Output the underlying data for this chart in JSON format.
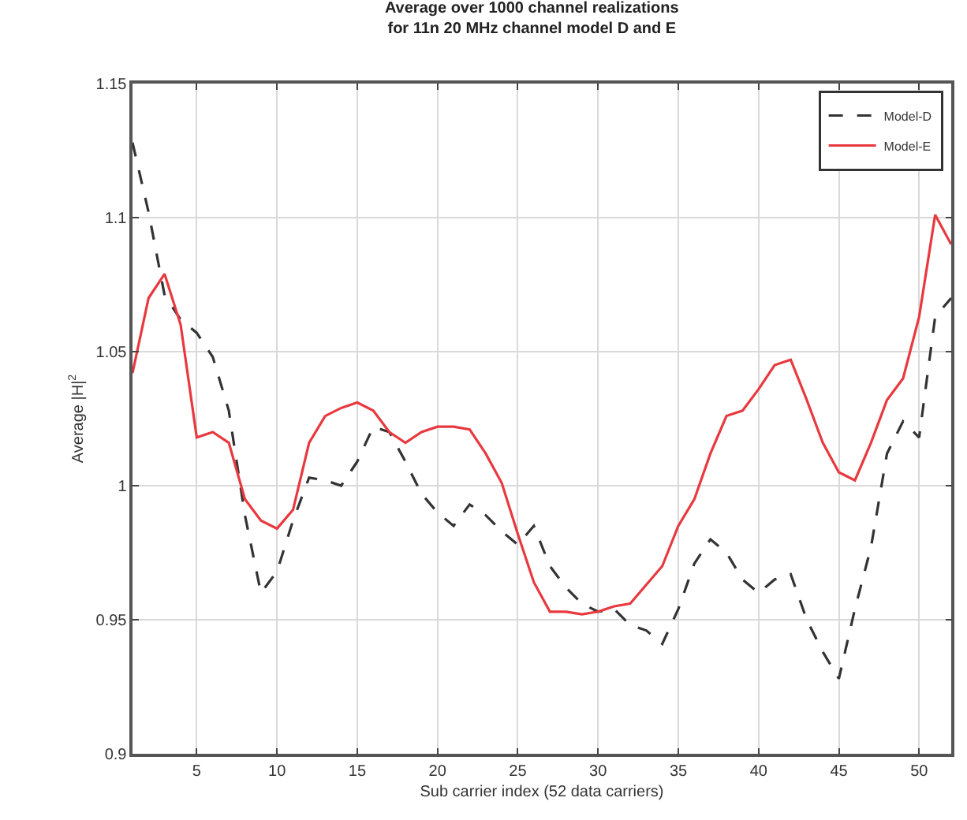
{
  "chart_data": {
    "type": "line",
    "title": "Average over 1000 channel realizations\nfor 11n 20 MHz channel model D and E",
    "xlabel": "Sub carrier index (52 data carriers)",
    "ylabel": "Average |H|$^{2}$",
    "x": [
      1,
      2,
      3,
      4,
      5,
      6,
      7,
      8,
      9,
      10,
      11,
      12,
      13,
      14,
      15,
      16,
      17,
      18,
      19,
      20,
      21,
      22,
      23,
      24,
      25,
      26,
      27,
      28,
      29,
      30,
      31,
      32,
      33,
      34,
      35,
      36,
      37,
      38,
      39,
      40,
      41,
      42,
      43,
      44,
      45,
      46,
      47,
      48,
      49,
      50,
      51,
      52
    ],
    "series": [
      {
        "name": "Model-D",
        "color": "#333333",
        "line_style": "dashed",
        "values": [
          1.128,
          1.102,
          1.071,
          1.062,
          1.057,
          1.048,
          1.028,
          0.989,
          0.96,
          0.968,
          0.987,
          1.003,
          1.002,
          1.0,
          1.009,
          1.022,
          1.02,
          1.009,
          0.997,
          0.99,
          0.985,
          0.993,
          0.989,
          0.983,
          0.978,
          0.985,
          0.97,
          0.962,
          0.956,
          0.953,
          0.954,
          0.948,
          0.946,
          0.941,
          0.954,
          0.971,
          0.98,
          0.975,
          0.965,
          0.96,
          0.965,
          0.967,
          0.95,
          0.938,
          0.928,
          0.954,
          0.977,
          1.012,
          1.024,
          1.018,
          1.063,
          1.07
        ]
      },
      {
        "name": "Model-E",
        "color": "#e8393f",
        "line_style": "solid",
        "values": [
          1.042,
          1.07,
          1.079,
          1.06,
          1.018,
          1.02,
          1.016,
          0.995,
          0.987,
          0.984,
          0.991,
          1.016,
          1.026,
          1.029,
          1.031,
          1.028,
          1.02,
          1.016,
          1.02,
          1.022,
          1.022,
          1.021,
          1.012,
          1.001,
          0.982,
          0.964,
          0.953,
          0.953,
          0.952,
          0.953,
          0.955,
          0.956,
          0.963,
          0.97,
          0.985,
          0.995,
          1.012,
          1.026,
          1.028,
          1.036,
          1.045,
          1.047,
          1.032,
          1.016,
          1.005,
          1.002,
          1.016,
          1.032,
          1.04,
          1.063,
          1.101,
          1.09
        ]
      }
    ],
    "xlim": [
      1,
      52
    ],
    "xticks": [
      5,
      10,
      15,
      20,
      25,
      30,
      35,
      40,
      45,
      50
    ],
    "ylim": [
      0.9,
      1.15
    ],
    "yticks": [
      0.9,
      0.95,
      1,
      1.05,
      1.1,
      1.15
    ],
    "grid": true,
    "legend": "top right",
    "marker": "none"
  }
}
